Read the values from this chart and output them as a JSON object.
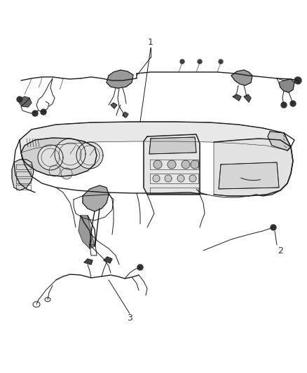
{
  "background_color": "#ffffff",
  "line_color": "#1a1a1a",
  "label_color": "#333333",
  "fig_width": 4.38,
  "fig_height": 5.33,
  "dpi": 100,
  "gray_fill": "#c8c8c8",
  "dark_fill": "#555555",
  "mid_gray": "#888888"
}
